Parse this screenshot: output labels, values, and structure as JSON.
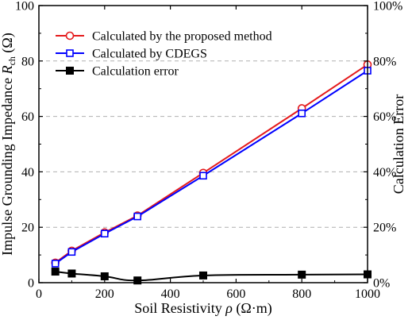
{
  "chart_data": {
    "type": "line",
    "x_axis": {
      "label_prefix": "Soil Resistivity ",
      "label_symbol": "ρ",
      "label_unit": " (Ω·m)",
      "range": [
        0,
        1000
      ],
      "ticks": [
        0,
        200,
        400,
        600,
        800,
        1000
      ],
      "tick_labels": [
        "0",
        "200",
        "400",
        "600",
        "800",
        "1000"
      ]
    },
    "y_left": {
      "label_prefix": "Impulse Grounding Impedance ",
      "label_symbol": "R",
      "label_subscript": "ch",
      "label_unit": " (Ω)",
      "range": [
        0,
        100
      ],
      "ticks": [
        0,
        20,
        40,
        60,
        80,
        100
      ],
      "tick_labels": [
        "0",
        "20",
        "40",
        "60",
        "80",
        "100"
      ]
    },
    "y_right": {
      "label": "Calculation Error",
      "range": [
        0,
        100
      ],
      "ticks": [
        0,
        20,
        40,
        60,
        80,
        100
      ],
      "tick_labels": [
        "0%",
        "20%",
        "40%",
        "60%",
        "80%",
        "100%"
      ]
    },
    "grid": {
      "horizontal_dashed": true,
      "values": [
        20,
        40,
        60,
        80
      ]
    },
    "legend": {
      "placement": "top-left"
    },
    "x": [
      50,
      100,
      200,
      300,
      500,
      800,
      1000
    ],
    "series": [
      {
        "name": "Calculated by the proposed method",
        "axis": "left",
        "color": "#e41a1c",
        "marker": "circle-open",
        "values": [
          7.2,
          11.5,
          18.1,
          24.2,
          39.6,
          62.9,
          78.7
        ],
        "smooth": false
      },
      {
        "name": "Calculated by CDEGS",
        "axis": "left",
        "color": "#0000ff",
        "marker": "square-open",
        "values": [
          6.9,
          11.1,
          17.7,
          23.9,
          38.6,
          61.1,
          76.5
        ],
        "smooth": false
      },
      {
        "name": "Calculation error",
        "axis": "right",
        "color": "#000000",
        "marker": "square-filled",
        "values": [
          4.0,
          3.3,
          2.3,
          0.8,
          2.6,
          2.9,
          3.0
        ],
        "smooth": true
      }
    ]
  }
}
